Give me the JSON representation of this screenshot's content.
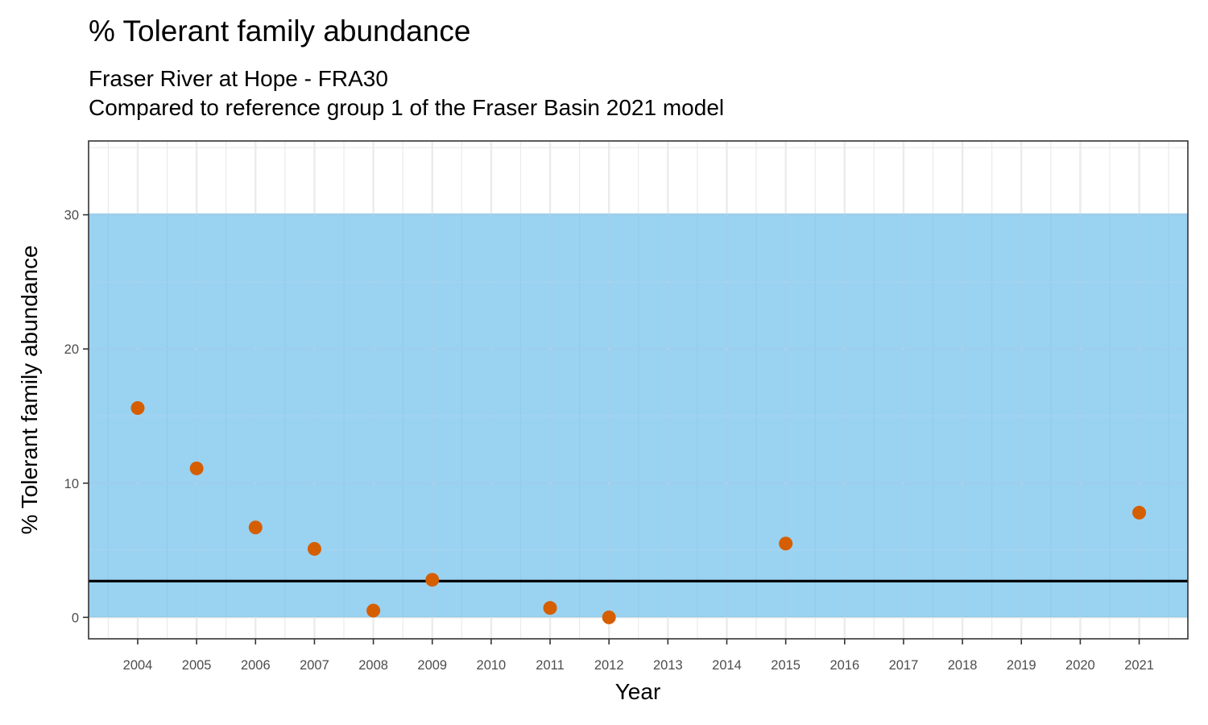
{
  "chart_data": {
    "type": "scatter",
    "title": "% Tolerant family abundance",
    "subtitle_lines": [
      "Fraser River at Hope - FRA30",
      "Compared to reference group 1 of the Fraser Basin 2021 model"
    ],
    "xlabel": "Year",
    "ylabel": "% Tolerant family abundance",
    "x_ticks": [
      "2004",
      "2005",
      "2006",
      "2007",
      "2008",
      "2009",
      "2010",
      "2011",
      "2012",
      "2013",
      "2014",
      "2015",
      "2016",
      "2017",
      "2018",
      "2019",
      "2020",
      "2021"
    ],
    "y_ticks": [
      0,
      10,
      20,
      30
    ],
    "ylim": [
      -1.6,
      35.5
    ],
    "grid": true,
    "reference_band": {
      "ymin": 0,
      "ymax": 30.1,
      "color": "#56b4e9"
    },
    "reference_line": {
      "y": 2.7,
      "color": "#000000"
    },
    "series": [
      {
        "color": "#d55e00",
        "points": [
          {
            "x": "2004",
            "y": 15.6
          },
          {
            "x": "2005",
            "y": 11.1
          },
          {
            "x": "2006",
            "y": 6.7
          },
          {
            "x": "2007",
            "y": 5.1
          },
          {
            "x": "2008",
            "y": 0.5
          },
          {
            "x": "2009",
            "y": 2.8
          },
          {
            "x": "2011",
            "y": 0.7
          },
          {
            "x": "2012",
            "y": 0.0
          },
          {
            "x": "2015",
            "y": 5.5
          },
          {
            "x": "2021",
            "y": 7.8
          }
        ]
      }
    ]
  }
}
